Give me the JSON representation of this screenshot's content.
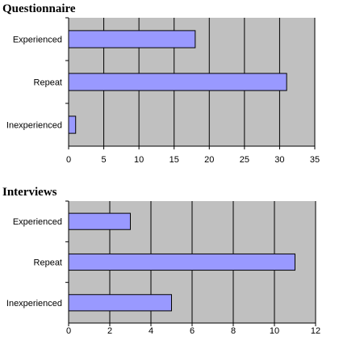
{
  "chart_data": [
    {
      "type": "bar",
      "orientation": "horizontal",
      "title": "Questionnaire",
      "categories": [
        "Experienced",
        "Repeat",
        "Inexperienced"
      ],
      "values": [
        18,
        31,
        1
      ],
      "xlim": [
        0,
        35
      ],
      "xticks": [
        "0",
        "5",
        "10",
        "15",
        "20",
        "25",
        "30",
        "35"
      ],
      "xlabel": "",
      "ylabel": "",
      "grid": "vertical",
      "colors": {
        "bar": "#9999ff",
        "plot_bg": "#c0c0c0",
        "bar_stroke": "#000000",
        "grid": "#000000"
      }
    },
    {
      "type": "bar",
      "orientation": "horizontal",
      "title": "Interviews",
      "categories": [
        "Experienced",
        "Repeat",
        "Inexperienced"
      ],
      "values": [
        3,
        11,
        5
      ],
      "xlim": [
        0,
        12
      ],
      "xticks": [
        "0",
        "2",
        "4",
        "6",
        "8",
        "10",
        "12"
      ],
      "xlabel": "",
      "ylabel": "",
      "grid": "vertical",
      "colors": {
        "bar": "#9999ff",
        "plot_bg": "#c0c0c0",
        "bar_stroke": "#000000",
        "grid": "#000000"
      }
    }
  ]
}
